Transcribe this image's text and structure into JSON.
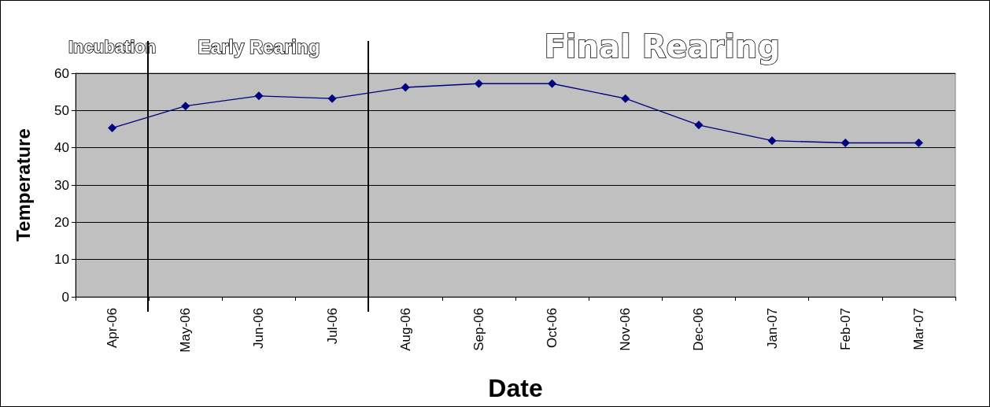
{
  "chart_data": {
    "type": "line",
    "xlabel": "Date",
    "ylabel": "Temperature",
    "categories": [
      "Apr-06",
      "May-06",
      "Jun-06",
      "Jul-06",
      "Aug-06",
      "Sep-06",
      "Oct-06",
      "Nov-06",
      "Dec-06",
      "Jan-07",
      "Feb-07",
      "Mar-07"
    ],
    "series": [
      {
        "color": "#000080",
        "values": [
          45.3,
          51.2,
          53.9,
          53.2,
          56.2,
          57.2,
          57.2,
          53.2,
          46.1,
          41.9,
          41.3,
          41.3
        ]
      }
    ],
    "ylim": [
      0,
      60
    ],
    "yticks": [
      0,
      10,
      20,
      30,
      40,
      50,
      60
    ],
    "grid": "y",
    "marker": "diamond",
    "line_style": "solid",
    "annotations": [
      "Incubation",
      "Early Rearing",
      "Final Rearing"
    ]
  }
}
